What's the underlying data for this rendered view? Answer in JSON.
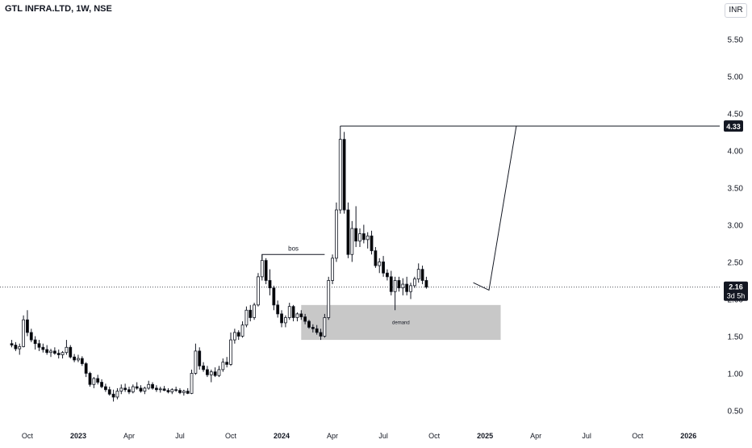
{
  "header": {
    "title": "GTL INFRA.LTD, 1W, NSE",
    "currency": "INR"
  },
  "colors": {
    "up": "#ffffff",
    "down": "#000000",
    "wick": "#131722",
    "zone": "#c8c8c8",
    "grid": "#ffffff"
  },
  "chart_data": {
    "type": "candlestick",
    "y_ticks": [
      "5.50",
      "5.00",
      "4.50",
      "4.00",
      "3.50",
      "3.00",
      "2.50",
      "2.00",
      "1.50",
      "1.00",
      "0.50"
    ],
    "ylim": [
      0.25,
      5.7
    ],
    "x_ticks": [
      {
        "label": "Oct",
        "week": 4
      },
      {
        "label": "2023",
        "week": 17
      },
      {
        "label": "Apr",
        "week": 30
      },
      {
        "label": "Jul",
        "week": 43
      },
      {
        "label": "Oct",
        "week": 56
      },
      {
        "label": "2024",
        "week": 69
      },
      {
        "label": "Apr",
        "week": 82
      },
      {
        "label": "Jul",
        "week": 95
      },
      {
        "label": "Oct",
        "week": 108
      },
      {
        "label": "2025",
        "week": 121
      },
      {
        "label": "Apr",
        "week": 134
      },
      {
        "label": "Jul",
        "week": 147
      },
      {
        "label": "Oct",
        "week": 160
      },
      {
        "label": "2026",
        "week": 173
      }
    ],
    "x_range": [
      -3,
      181
    ],
    "candles": [
      [
        1.4,
        1.45,
        1.35,
        1.38
      ],
      [
        1.38,
        1.42,
        1.3,
        1.33
      ],
      [
        1.33,
        1.4,
        1.25,
        1.36
      ],
      [
        1.36,
        1.78,
        1.35,
        1.72
      ],
      [
        1.72,
        1.85,
        1.5,
        1.55
      ],
      [
        1.55,
        1.6,
        1.42,
        1.45
      ],
      [
        1.45,
        1.5,
        1.32,
        1.4
      ],
      [
        1.4,
        1.45,
        1.3,
        1.35
      ],
      [
        1.35,
        1.4,
        1.28,
        1.32
      ],
      [
        1.32,
        1.38,
        1.25,
        1.28
      ],
      [
        1.28,
        1.33,
        1.22,
        1.3
      ],
      [
        1.3,
        1.35,
        1.25,
        1.27
      ],
      [
        1.27,
        1.32,
        1.2,
        1.25
      ],
      [
        1.25,
        1.3,
        1.2,
        1.28
      ],
      [
        1.28,
        1.45,
        1.25,
        1.35
      ],
      [
        1.35,
        1.38,
        1.2,
        1.22
      ],
      [
        1.22,
        1.26,
        1.15,
        1.18
      ],
      [
        1.18,
        1.25,
        1.15,
        1.2
      ],
      [
        1.2,
        1.23,
        1.1,
        1.13
      ],
      [
        1.13,
        1.15,
        0.95,
        1.0
      ],
      [
        1.0,
        1.02,
        0.82,
        0.85
      ],
      [
        0.85,
        0.95,
        0.8,
        0.93
      ],
      [
        0.93,
        0.98,
        0.85,
        0.88
      ],
      [
        0.88,
        0.92,
        0.8,
        0.82
      ],
      [
        0.82,
        0.86,
        0.75,
        0.78
      ],
      [
        0.78,
        0.82,
        0.7,
        0.72
      ],
      [
        0.72,
        0.78,
        0.62,
        0.68
      ],
      [
        0.68,
        0.8,
        0.65,
        0.76
      ],
      [
        0.76,
        0.85,
        0.72,
        0.8
      ],
      [
        0.8,
        0.86,
        0.75,
        0.78
      ],
      [
        0.78,
        0.82,
        0.72,
        0.75
      ],
      [
        0.75,
        0.85,
        0.73,
        0.82
      ],
      [
        0.82,
        0.88,
        0.78,
        0.8
      ],
      [
        0.8,
        0.84,
        0.74,
        0.76
      ],
      [
        0.76,
        0.82,
        0.72,
        0.8
      ],
      [
        0.8,
        0.9,
        0.78,
        0.85
      ],
      [
        0.85,
        0.88,
        0.78,
        0.8
      ],
      [
        0.8,
        0.84,
        0.75,
        0.78
      ],
      [
        0.78,
        0.82,
        0.74,
        0.79
      ],
      [
        0.79,
        0.83,
        0.76,
        0.77
      ],
      [
        0.77,
        0.8,
        0.73,
        0.75
      ],
      [
        0.75,
        0.8,
        0.72,
        0.78
      ],
      [
        0.78,
        0.82,
        0.75,
        0.77
      ],
      [
        0.77,
        0.8,
        0.72,
        0.74
      ],
      [
        0.74,
        0.78,
        0.7,
        0.76
      ],
      [
        0.76,
        0.8,
        0.72,
        0.73
      ],
      [
        0.73,
        1.05,
        0.72,
        1.0
      ],
      [
        1.0,
        1.4,
        0.98,
        1.3
      ],
      [
        1.3,
        1.35,
        1.05,
        1.1
      ],
      [
        1.1,
        1.15,
        1.02,
        1.05
      ],
      [
        1.05,
        1.1,
        0.95,
        0.98
      ],
      [
        0.98,
        1.05,
        0.88,
        1.02
      ],
      [
        1.02,
        1.08,
        0.95,
        0.97
      ],
      [
        0.97,
        1.1,
        0.95,
        1.05
      ],
      [
        1.05,
        1.2,
        1.02,
        1.15
      ],
      [
        1.15,
        1.22,
        1.08,
        1.12
      ],
      [
        1.12,
        1.55,
        1.1,
        1.45
      ],
      [
        1.45,
        1.6,
        1.4,
        1.55
      ],
      [
        1.55,
        1.58,
        1.45,
        1.5
      ],
      [
        1.5,
        1.7,
        1.48,
        1.65
      ],
      [
        1.65,
        1.9,
        1.62,
        1.85
      ],
      [
        1.85,
        1.92,
        1.7,
        1.75
      ],
      [
        1.75,
        1.95,
        1.72,
        1.92
      ],
      [
        1.92,
        2.35,
        1.9,
        2.3
      ],
      [
        2.3,
        2.6,
        2.25,
        2.52
      ],
      [
        2.52,
        2.55,
        2.2,
        2.25
      ],
      [
        2.25,
        2.4,
        2.05,
        2.15
      ],
      [
        2.15,
        2.18,
        1.85,
        1.92
      ],
      [
        1.92,
        1.98,
        1.75,
        1.8
      ],
      [
        1.8,
        1.85,
        1.62,
        1.68
      ],
      [
        1.68,
        1.78,
        1.62,
        1.75
      ],
      [
        1.75,
        1.95,
        1.72,
        1.9
      ],
      [
        1.9,
        1.92,
        1.7,
        1.75
      ],
      [
        1.75,
        1.82,
        1.7,
        1.8
      ],
      [
        1.8,
        1.85,
        1.72,
        1.76
      ],
      [
        1.76,
        1.8,
        1.66,
        1.7
      ],
      [
        1.7,
        1.72,
        1.6,
        1.62
      ],
      [
        1.62,
        1.66,
        1.55,
        1.6
      ],
      [
        1.6,
        1.65,
        1.52,
        1.55
      ],
      [
        1.55,
        1.6,
        1.45,
        1.5
      ],
      [
        1.5,
        1.8,
        1.48,
        1.75
      ],
      [
        1.75,
        2.3,
        1.72,
        2.25
      ],
      [
        2.25,
        2.6,
        2.2,
        2.55
      ],
      [
        2.55,
        3.3,
        2.5,
        3.2
      ],
      [
        3.2,
        4.33,
        3.15,
        4.15
      ],
      [
        4.15,
        4.25,
        3.15,
        3.2
      ],
      [
        3.2,
        3.3,
        2.55,
        2.6
      ],
      [
        2.6,
        3.05,
        2.5,
        2.95
      ],
      [
        2.95,
        3.25,
        2.7,
        2.78
      ],
      [
        2.78,
        2.95,
        2.7,
        2.88
      ],
      [
        2.88,
        3.0,
        2.75,
        2.8
      ],
      [
        2.8,
        2.9,
        2.68,
        2.85
      ],
      [
        2.85,
        2.92,
        2.6,
        2.65
      ],
      [
        2.65,
        2.7,
        2.42,
        2.45
      ],
      [
        2.45,
        2.55,
        2.35,
        2.5
      ],
      [
        2.5,
        2.58,
        2.3,
        2.35
      ],
      [
        2.35,
        2.4,
        2.25,
        2.3
      ],
      [
        2.3,
        2.38,
        2.05,
        2.1
      ],
      [
        2.1,
        2.3,
        1.85,
        2.25
      ],
      [
        2.25,
        2.3,
        2.1,
        2.15
      ],
      [
        2.15,
        2.28,
        2.05,
        2.2
      ],
      [
        2.2,
        2.3,
        2.05,
        2.1
      ],
      [
        2.1,
        2.22,
        2.0,
        2.18
      ],
      [
        2.18,
        2.3,
        2.15,
        2.27
      ],
      [
        2.27,
        2.48,
        2.22,
        2.4
      ],
      [
        2.4,
        2.45,
        2.2,
        2.25
      ],
      [
        2.25,
        2.3,
        2.14,
        2.16
      ]
    ],
    "horizontal_line": {
      "price": 4.33,
      "label": "4.33",
      "from_week": 84
    },
    "bos": {
      "label": "bos",
      "price": 2.6,
      "from_week": 64,
      "to_week": 80
    },
    "demand_zone": {
      "label": "demand",
      "top": 1.92,
      "bottom": 1.45,
      "from_week": 74,
      "to_week": 125
    },
    "projection": [
      [
        118,
        2.22
      ],
      [
        122,
        2.12
      ],
      [
        129,
        4.33
      ]
    ],
    "current_price": {
      "price": 2.16,
      "label": "2.16",
      "countdown": "3d 5h"
    }
  }
}
